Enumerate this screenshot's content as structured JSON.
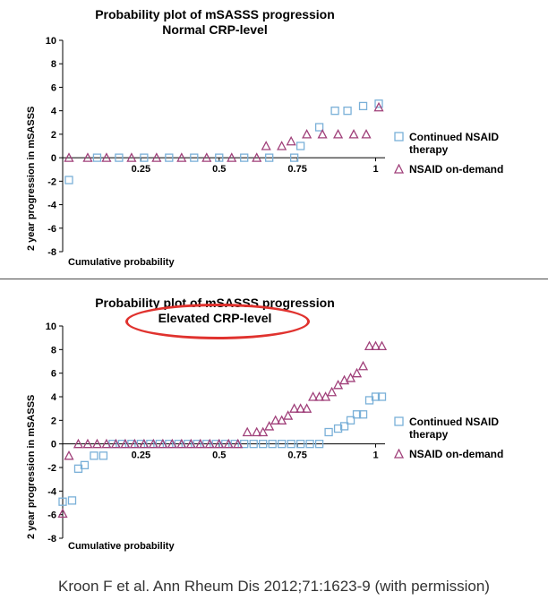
{
  "citation": "Kroon F et al. Ann Rheum Dis 2012;71:1623-9 (with permission)",
  "colors": {
    "continued": "#7ab0d8",
    "ondemand": "#a0407a",
    "highlight": "#e0322e"
  },
  "chart_data": [
    {
      "type": "scatter",
      "title": "Probability plot of mSASSS progression",
      "subtitle": "Normal CRP-level",
      "xlabel": "Cumulative probability",
      "ylabel": "2 year progression in mSASSS",
      "xlim": [
        0,
        1.03
      ],
      "ylim": [
        -8,
        10
      ],
      "x_ticks": [
        0.25,
        0.5,
        0.75,
        1
      ],
      "x_tick_labels": [
        "0.25",
        "0.5",
        "0.75",
        "1"
      ],
      "y_ticks": [
        -8,
        -6,
        -4,
        -2,
        0,
        2,
        4,
        6,
        8,
        10
      ],
      "legend_position": "right",
      "series": [
        {
          "name": "Continued NSAID therapy",
          "marker": "square",
          "color": "#7ab0d8",
          "x": [
            0.02,
            0.11,
            0.18,
            0.26,
            0.34,
            0.42,
            0.5,
            0.58,
            0.66,
            0.74,
            0.76,
            0.82,
            0.87,
            0.91,
            0.96,
            1.01
          ],
          "y": [
            -1.9,
            0,
            0,
            0,
            0,
            0,
            0,
            0,
            0,
            0,
            1,
            2.6,
            4,
            4,
            4.4,
            4.6
          ]
        },
        {
          "name": "NSAID on-demand",
          "marker": "triangle",
          "color": "#a0407a",
          "x": [
            0.02,
            0.08,
            0.14,
            0.22,
            0.3,
            0.38,
            0.46,
            0.54,
            0.62,
            0.65,
            0.7,
            0.73,
            0.78,
            0.83,
            0.88,
            0.93,
            0.97,
            1.01
          ],
          "y": [
            0,
            0,
            0,
            0,
            0,
            0,
            0,
            0,
            0,
            1,
            1,
            1.4,
            2,
            2,
            2,
            2,
            2,
            4.3
          ]
        }
      ]
    },
    {
      "type": "scatter",
      "title": "Probability plot of mSASSS progression",
      "subtitle": "Elevated CRP-level",
      "xlabel": "Cumulative probability",
      "ylabel": "2 year progression in mSASSS",
      "xlim": [
        0,
        1.03
      ],
      "ylim": [
        -8,
        10
      ],
      "x_ticks": [
        0.25,
        0.5,
        0.75,
        1
      ],
      "x_tick_labels": [
        "0.25",
        "0.5",
        "0.75",
        "1"
      ],
      "y_ticks": [
        -8,
        -6,
        -4,
        -2,
        0,
        2,
        4,
        6,
        8,
        10
      ],
      "legend_position": "right",
      "series": [
        {
          "name": "Continued NSAID therapy",
          "marker": "square",
          "color": "#7ab0d8",
          "x": [
            0.0,
            0.03,
            0.05,
            0.07,
            0.1,
            0.13,
            0.16,
            0.19,
            0.22,
            0.25,
            0.28,
            0.31,
            0.34,
            0.37,
            0.4,
            0.43,
            0.46,
            0.49,
            0.52,
            0.55,
            0.58,
            0.61,
            0.64,
            0.67,
            0.7,
            0.73,
            0.76,
            0.79,
            0.82,
            0.85,
            0.88,
            0.9,
            0.92,
            0.94,
            0.96,
            0.98,
            1.0,
            1.02
          ],
          "y": [
            -4.9,
            -4.8,
            -2.1,
            -1.8,
            -1,
            -1,
            0,
            0,
            0,
            0,
            0,
            0,
            0,
            0,
            0,
            0,
            0,
            0,
            0,
            0,
            0,
            0,
            0,
            0,
            0,
            0,
            0,
            0,
            0,
            1,
            1.3,
            1.5,
            2,
            2.5,
            2.5,
            3.7,
            4,
            4
          ]
        },
        {
          "name": "NSAID on-demand",
          "marker": "triangle",
          "color": "#a0407a",
          "x": [
            0.0,
            0.02,
            0.05,
            0.08,
            0.11,
            0.14,
            0.17,
            0.2,
            0.23,
            0.26,
            0.29,
            0.32,
            0.35,
            0.38,
            0.41,
            0.44,
            0.47,
            0.5,
            0.53,
            0.56,
            0.59,
            0.62,
            0.64,
            0.66,
            0.68,
            0.7,
            0.72,
            0.74,
            0.76,
            0.78,
            0.8,
            0.82,
            0.84,
            0.86,
            0.88,
            0.9,
            0.92,
            0.94,
            0.96,
            0.98,
            1.0,
            1.02
          ],
          "y": [
            -5.9,
            -1,
            0,
            0,
            0,
            0,
            0,
            0,
            0,
            0,
            0,
            0,
            0,
            0,
            0,
            0,
            0,
            0,
            0,
            0,
            1,
            1,
            1,
            1.5,
            2,
            2,
            2.4,
            3,
            3,
            3,
            4,
            4,
            4,
            4.4,
            5,
            5.4,
            5.6,
            6,
            6.6,
            8.3,
            8.3,
            8.3
          ]
        }
      ]
    }
  ]
}
